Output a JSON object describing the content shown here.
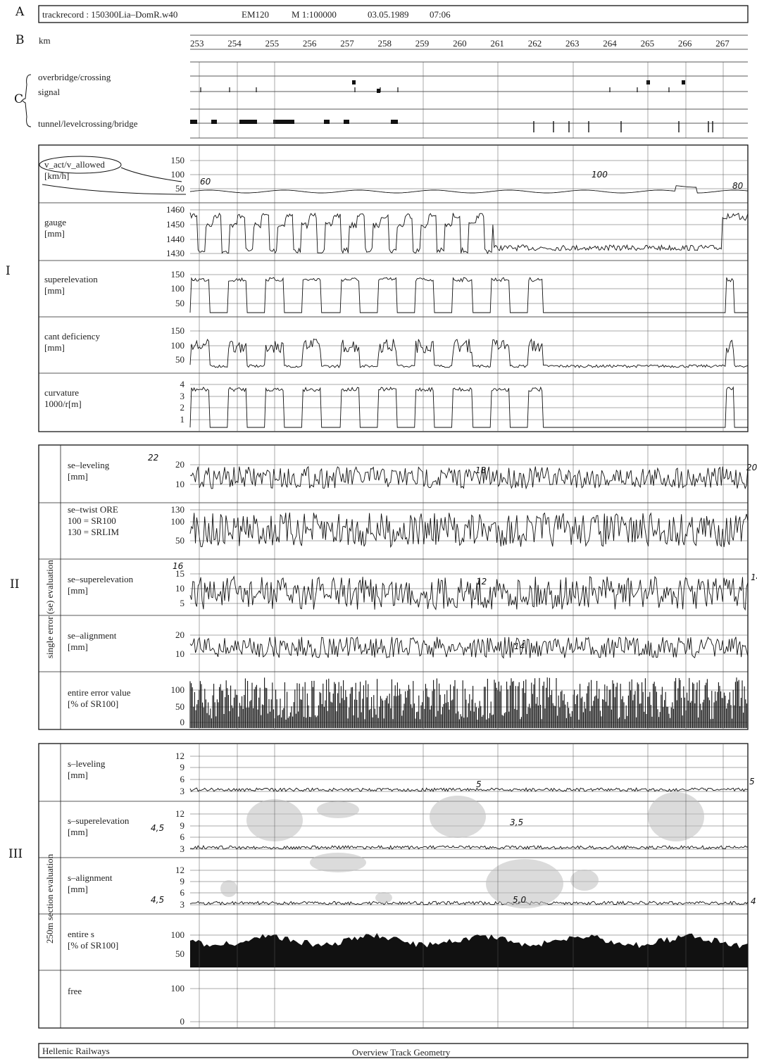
{
  "header": {
    "row_a": "A",
    "row_b": "B",
    "row_c": "C",
    "record": "trackrecord : 150300Lia–DomR.w40",
    "vehicle": "EM120",
    "scale": "M 1:100000",
    "date": "03.05.1989",
    "time": "07:06"
  },
  "km": {
    "label": "km",
    "values": [
      "253",
      "254",
      "255",
      "256",
      "257",
      "258",
      "259",
      "260",
      "261",
      "262",
      "263",
      "264",
      "265",
      "266",
      "267"
    ]
  },
  "features": {
    "overbridge": "overbridge/crossing",
    "signal": "signal",
    "tunnel": "tunnel/levelcrossing/bridge"
  },
  "sections": {
    "one": "I",
    "two": "II",
    "three": "III",
    "two_vertical": "single error (se) evaluation",
    "three_vertical": "250m section evaluation"
  },
  "panels": [
    {
      "id": "speed",
      "label1": "v_act/v_allowed",
      "label2": "[km/h]",
      "ticks": [
        "150",
        "100",
        "50"
      ]
    },
    {
      "id": "gauge",
      "label1": "gauge",
      "label2": "[mm]",
      "ticks": [
        "1460",
        "1450",
        "1440",
        "1430"
      ]
    },
    {
      "id": "superelevation",
      "label1": "superelevation",
      "label2": "[mm]",
      "ticks": [
        "150",
        "100",
        "50"
      ]
    },
    {
      "id": "cant",
      "label1": "cant deficiency",
      "label2": "[mm]",
      "ticks": [
        "150",
        "100",
        "50"
      ]
    },
    {
      "id": "curvature",
      "label1": "curvature",
      "label2": "1000/r[m]",
      "ticks": [
        "4",
        "3",
        "2",
        "1"
      ]
    },
    {
      "id": "se_leveling",
      "label1": "se–leveling",
      "label2": "[mm]",
      "ticks": [
        "20",
        "10"
      ]
    },
    {
      "id": "se_twist",
      "label1": "se–twist ORE",
      "label2": "100 = SR100",
      "label3": "130 = SRLIM",
      "ticks": [
        "130",
        "100",
        "50"
      ]
    },
    {
      "id": "se_superelevation",
      "label1": "se–superelevation",
      "label2": "[mm]",
      "ticks": [
        "15",
        "10",
        "5"
      ]
    },
    {
      "id": "se_alignment",
      "label1": "se–alignment",
      "label2": "[mm]",
      "ticks": [
        "20",
        "10"
      ]
    },
    {
      "id": "entire_error",
      "label1": "entire error value",
      "label2": "[% of SR100]",
      "ticks": [
        "100",
        "50",
        "0"
      ]
    },
    {
      "id": "s_leveling",
      "label1": "s–leveling",
      "label2": "[mm]",
      "ticks": [
        "12",
        "9",
        "6",
        "3"
      ]
    },
    {
      "id": "s_superelevation",
      "label1": "s–superelevation",
      "label2": "[mm]",
      "ticks": [
        "12",
        "9",
        "6",
        "3"
      ]
    },
    {
      "id": "s_alignment",
      "label1": "s–alignment",
      "label2": "[mm]",
      "ticks": [
        "12",
        "9",
        "6",
        "3"
      ]
    },
    {
      "id": "entire_s",
      "label1": "entire s",
      "label2": "[% of SR100]",
      "ticks": [
        "100",
        "50"
      ]
    },
    {
      "id": "free",
      "label1": "free",
      "label2": "",
      "ticks": [
        "100",
        "0"
      ]
    }
  ],
  "annotations": {
    "speed_60": "60",
    "speed_100": "100",
    "speed_80": "80",
    "lev_22": "22",
    "lev_18": "18",
    "lev_20": "20",
    "sup_16": "16",
    "sup_12": "12",
    "sup_14": "14",
    "ali_14": "14",
    "s_lev_5a": "5",
    "s_lev_5b": "5",
    "s_sup_45": "4,5",
    "s_sup_35": "3,5",
    "s_ali_45": "4,5",
    "s_ali_5": "5,0",
    "s_ali_4": "4"
  },
  "footer": {
    "left": "Hellenic Railways",
    "center": "Overview Track Geometry"
  },
  "chart_data": {
    "type": "line",
    "title": "Overview Track Geometry",
    "x_label": "km",
    "x_range": [
      253,
      267
    ],
    "series": [
      {
        "name": "v_act/v_allowed",
        "unit": "km/h",
        "ylim": [
          0,
          150
        ],
        "allowed": [
          {
            "from": 253,
            "to": 261,
            "value": 60
          },
          {
            "from": 261,
            "to": 266.5,
            "value": 100
          },
          {
            "from": 266.5,
            "to": 267.8,
            "value": 80
          }
        ]
      },
      {
        "name": "gauge",
        "unit": "mm",
        "ylim": [
          1430,
          1460
        ]
      },
      {
        "name": "superelevation",
        "unit": "mm",
        "ylim": [
          0,
          150
        ]
      },
      {
        "name": "cant deficiency",
        "unit": "mm",
        "ylim": [
          0,
          150
        ]
      },
      {
        "name": "curvature",
        "unit": "1000/r[m]",
        "ylim": [
          0,
          4
        ]
      },
      {
        "name": "se–leveling",
        "unit": "mm",
        "ylim": [
          0,
          25
        ]
      },
      {
        "name": "se–twist ORE",
        "ylim": [
          30,
          130
        ]
      },
      {
        "name": "se–superelevation",
        "unit": "mm",
        "ylim": [
          0,
          17
        ]
      },
      {
        "name": "se–alignment",
        "unit": "mm",
        "ylim": [
          0,
          25
        ]
      },
      {
        "name": "entire error value",
        "unit": "% of SR100",
        "ylim": [
          0,
          110
        ]
      },
      {
        "name": "s–leveling",
        "unit": "mm",
        "ylim": [
          0,
          13
        ]
      },
      {
        "name": "s–superelevation",
        "unit": "mm",
        "ylim": [
          0,
          13
        ]
      },
      {
        "name": "s–alignment",
        "unit": "mm",
        "ylim": [
          0,
          13
        ]
      },
      {
        "name": "entire s",
        "unit": "% of SR100",
        "ylim": [
          0,
          110
        ]
      },
      {
        "name": "free",
        "ylim": [
          0,
          100
        ]
      }
    ],
    "grid": true
  }
}
